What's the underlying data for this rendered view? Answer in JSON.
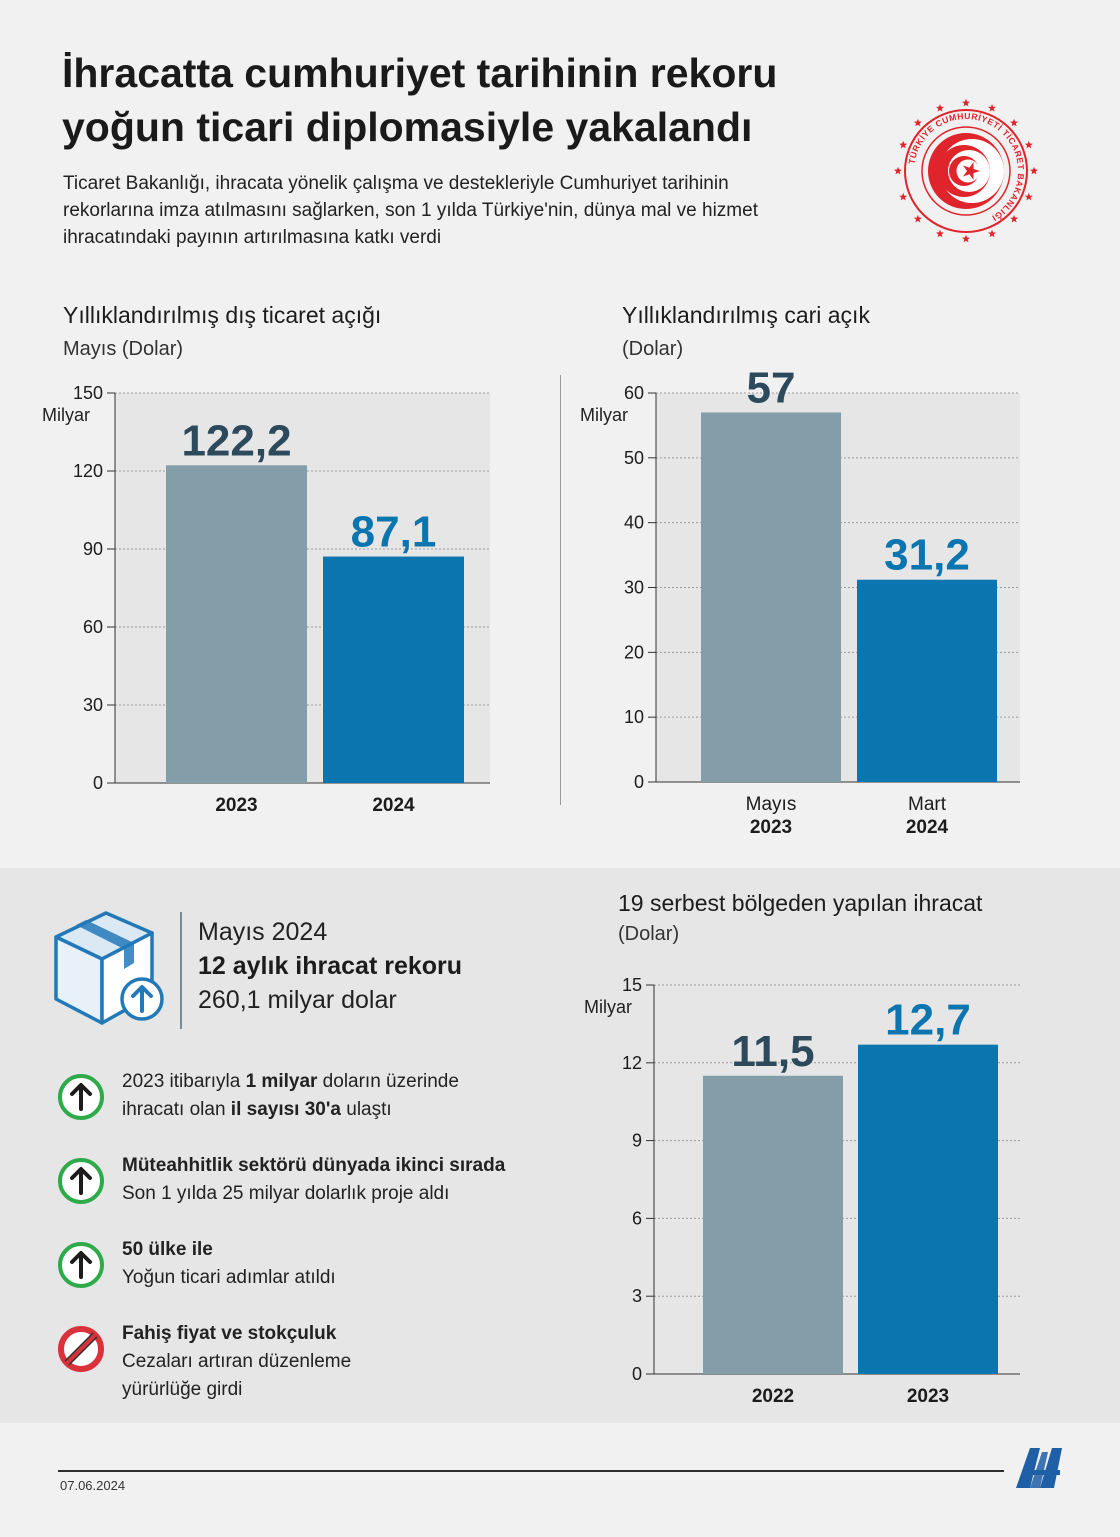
{
  "header": {
    "title": "İhracatta cumhuriyet tarihinin rekoru yoğun ticari diplomasiyle yakalandı",
    "subtitle": "Ticaret Bakanlığı, ihracata yönelik çalışma ve destekleriyle Cumhuriyet tarihinin rekorlarına imza atılmasını sağlarken, son 1 yılda Türkiye'nin, dünya mal ve hizmet ihracatındaki payının artırılmasına katkı verdi",
    "logo_text": "TÜRKİYE CUMHURİYETİ TİCARET BAKANLIĞI"
  },
  "colors": {
    "gray_bar": "#849ea9",
    "blue_bar": "#0a75ae",
    "label_dark": "#2c4a5c",
    "label_blue": "#0a75ae",
    "arrow_green": "#2faa4a",
    "stop_red": "#d9323a",
    "box_blue": "#2379b8"
  },
  "chart_data": [
    {
      "id": "trade",
      "type": "bar",
      "title": "Yıllıklandırılmış dış ticaret açığı",
      "subtitle": "Mayıs (Dolar)",
      "ylabel": "Milyar",
      "ylim": [
        0,
        150
      ],
      "ticks": [
        0,
        30,
        60,
        90,
        120,
        150
      ],
      "categories": [
        [
          "2023"
        ],
        [
          "2024"
        ]
      ],
      "values": [
        122.2,
        87.1
      ],
      "value_labels": [
        "122,2",
        "87,1"
      ],
      "bar_colors": [
        "#849ea9",
        "#0a75ae"
      ],
      "label_colors": [
        "#2c4a5c",
        "#0a75ae"
      ]
    },
    {
      "id": "current",
      "type": "bar",
      "title": "Yıllıklandırılmış cari açık",
      "subtitle": "(Dolar)",
      "ylabel": "Milyar",
      "ylim": [
        0,
        60
      ],
      "ticks": [
        0,
        10,
        20,
        30,
        40,
        50,
        60
      ],
      "categories": [
        [
          "Mayıs",
          "2023"
        ],
        [
          "Mart",
          "2024"
        ]
      ],
      "values": [
        57,
        31.2
      ],
      "value_labels": [
        "57",
        "31,2"
      ],
      "bar_colors": [
        "#849ea9",
        "#0a75ae"
      ],
      "label_colors": [
        "#2c4a5c",
        "#0a75ae"
      ]
    },
    {
      "id": "freezone",
      "type": "bar",
      "title": "19 serbest bölgeden yapılan ihracat",
      "subtitle": "(Dolar)",
      "ylabel": "Milyar",
      "ylim": [
        0,
        15
      ],
      "ticks": [
        0,
        3,
        6,
        9,
        12,
        15
      ],
      "categories": [
        [
          "2022"
        ],
        [
          "2023"
        ]
      ],
      "values": [
        11.5,
        12.7
      ],
      "value_labels": [
        "11,5",
        "12,7"
      ],
      "bar_colors": [
        "#849ea9",
        "#0a75ae"
      ],
      "label_colors": [
        "#2c4a5c",
        "#0a75ae"
      ]
    }
  ],
  "export_record": {
    "period": "Mayıs 2024",
    "headline": "12 aylık ihracat rekoru",
    "amount": "260,1 milyar dolar"
  },
  "bullets": [
    {
      "icon": "up-arrow-icon",
      "parts": [
        [
          "2023 itibarıyla ",
          false
        ],
        [
          "1 milyar",
          true
        ],
        [
          " doların üzerinde\nihracatı olan ",
          false
        ],
        [
          "il sayısı 30'a",
          true
        ],
        [
          " ulaştı",
          false
        ]
      ]
    },
    {
      "icon": "up-arrow-icon",
      "parts": [
        [
          "Müteahhitlik sektörü dünyada ikinci sırada",
          true
        ],
        [
          "\nSon 1 yılda 25 milyar dolarlık proje aldı",
          false
        ]
      ]
    },
    {
      "icon": "up-arrow-icon",
      "parts": [
        [
          "50 ülke ile",
          true
        ],
        [
          "\nYoğun ticari adımlar atıldı",
          false
        ]
      ]
    },
    {
      "icon": "prohibited-icon",
      "parts": [
        [
          "Fahiş fiyat ve stokçuluk",
          true
        ],
        [
          "\nCezaları artıran düzenleme\nyürürlüğe girdi",
          false
        ]
      ]
    }
  ],
  "footer": {
    "date": "07.06.2024",
    "agency_logo": "AA"
  }
}
